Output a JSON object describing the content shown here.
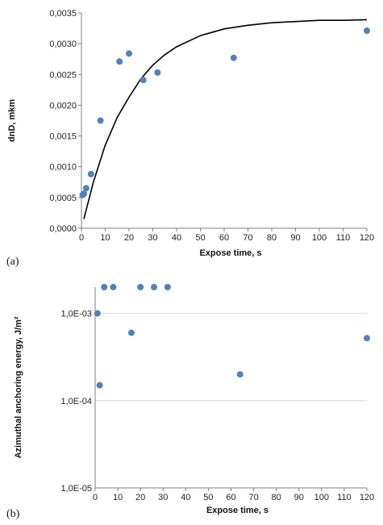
{
  "colors": {
    "point": "#4f81bd",
    "curve": "#000000",
    "axis": "#7f7f7f",
    "grid": "#d9d9d9"
  },
  "chart_data": [
    {
      "type": "scatter",
      "panel_label": "(a)",
      "xlabel": "Expose time, s",
      "ylabel": "dnD, mkm",
      "xlim": [
        0,
        120
      ],
      "ylim": [
        0,
        0.0035
      ],
      "x_ticks": [
        "0",
        "10",
        "20",
        "30",
        "40",
        "50",
        "60",
        "70",
        "80",
        "90",
        "100",
        "110",
        "120"
      ],
      "y_ticks": [
        "0,0000",
        "0,0005",
        "0,0010",
        "0,0015",
        "0,0020",
        "0,0025",
        "0,0030",
        "0,0035"
      ],
      "grid": false,
      "points": [
        {
          "x": 0.5,
          "y": 0.00054
        },
        {
          "x": 1,
          "y": 0.00056
        },
        {
          "x": 2,
          "y": 0.00065
        },
        {
          "x": 4,
          "y": 0.00088
        },
        {
          "x": 8,
          "y": 0.00175
        },
        {
          "x": 16,
          "y": 0.00271
        },
        {
          "x": 20,
          "y": 0.00284
        },
        {
          "x": 26,
          "y": 0.00241
        },
        {
          "x": 32,
          "y": 0.00253
        },
        {
          "x": 64,
          "y": 0.00277
        },
        {
          "x": 120,
          "y": 0.00321
        }
      ],
      "fit_curve": [
        {
          "x": 1,
          "y": 0.00015
        },
        {
          "x": 5,
          "y": 0.00075
        },
        {
          "x": 10,
          "y": 0.00135
        },
        {
          "x": 15,
          "y": 0.0018
        },
        {
          "x": 20,
          "y": 0.00213
        },
        {
          "x": 25,
          "y": 0.00243
        },
        {
          "x": 30,
          "y": 0.00265
        },
        {
          "x": 35,
          "y": 0.00282
        },
        {
          "x": 40,
          "y": 0.00295
        },
        {
          "x": 50,
          "y": 0.00313
        },
        {
          "x": 60,
          "y": 0.00324
        },
        {
          "x": 70,
          "y": 0.0033
        },
        {
          "x": 80,
          "y": 0.00334
        },
        {
          "x": 90,
          "y": 0.00336
        },
        {
          "x": 100,
          "y": 0.00338
        },
        {
          "x": 110,
          "y": 0.00338
        },
        {
          "x": 120,
          "y": 0.00339
        }
      ]
    },
    {
      "type": "scatter",
      "panel_label": "(b)",
      "xlabel": "Expose time, s",
      "ylabel": "Azimuthal anchoring energy, J/m²",
      "xlim": [
        0,
        120
      ],
      "ylim": [
        1e-05,
        0.002
      ],
      "log_y": true,
      "x_ticks": [
        "0",
        "10",
        "20",
        "30",
        "40",
        "50",
        "60",
        "70",
        "80",
        "90",
        "100",
        "110",
        "120"
      ],
      "y_ticks": [
        {
          "label": "1,0E-05",
          "value": 1e-05
        },
        {
          "label": "1,0E-04",
          "value": 0.0001
        },
        {
          "label": "1,0E-03",
          "value": 0.001
        }
      ],
      "grid": true,
      "points": [
        {
          "x": 1,
          "y": 0.001
        },
        {
          "x": 2,
          "y": 0.00015
        },
        {
          "x": 4,
          "y": 0.002
        },
        {
          "x": 8,
          "y": 0.002
        },
        {
          "x": 16,
          "y": 0.0006
        },
        {
          "x": 20,
          "y": 0.002
        },
        {
          "x": 26,
          "y": 0.002
        },
        {
          "x": 32,
          "y": 0.002
        },
        {
          "x": 64,
          "y": 0.0002
        },
        {
          "x": 120,
          "y": 0.00052
        }
      ]
    }
  ]
}
